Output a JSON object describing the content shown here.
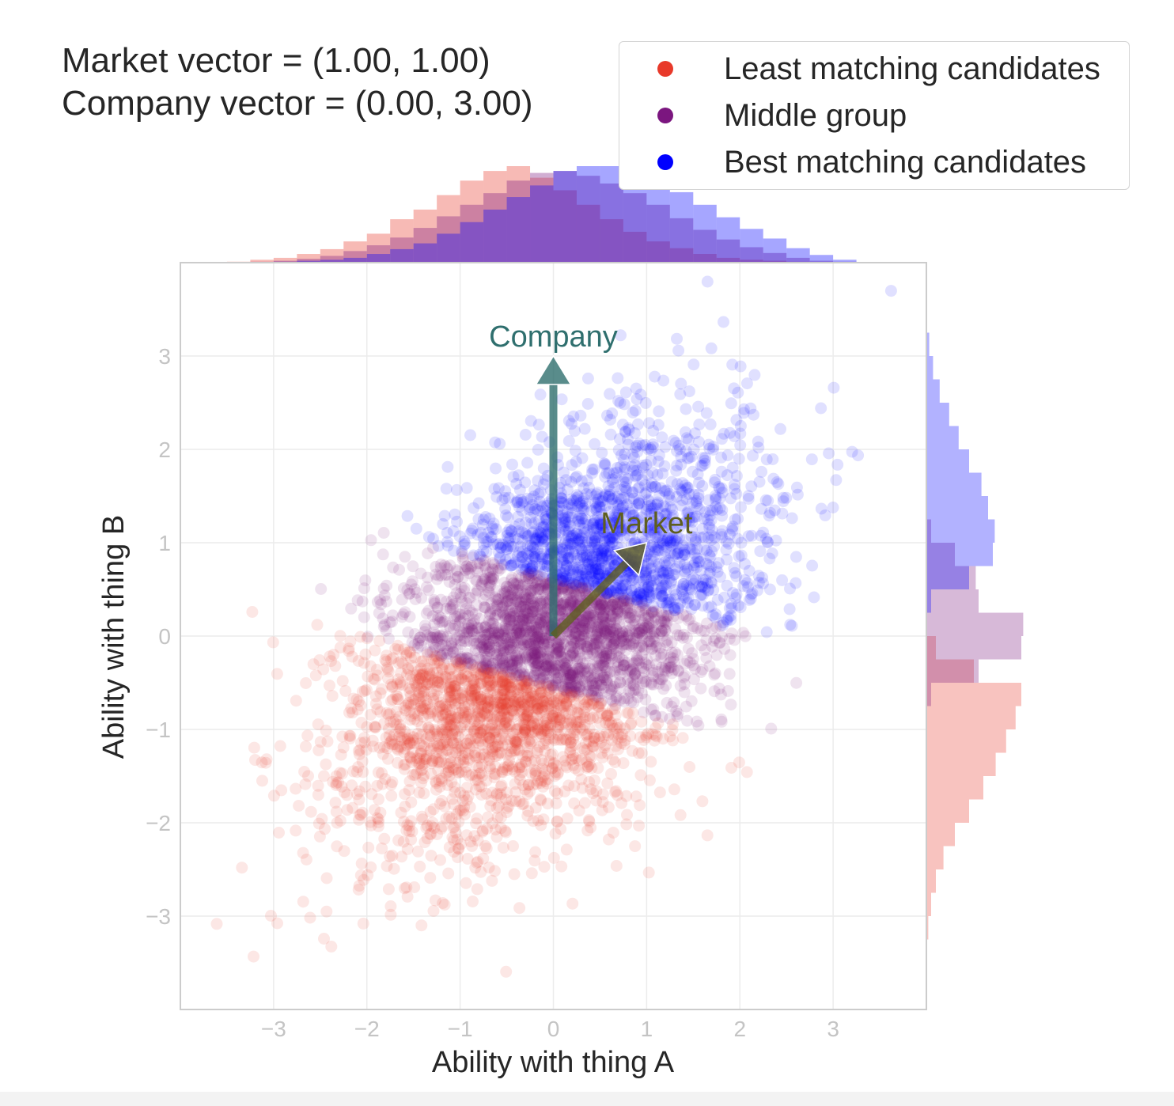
{
  "info": {
    "market_text": "Market vector = (1.00, 1.00)",
    "company_text": "Company vector = (0.00, 3.00)"
  },
  "legend": {
    "items": [
      {
        "label": "Least matching candidates",
        "color": "#e8392a"
      },
      {
        "label": "Middle group",
        "color": "#7b167f"
      },
      {
        "label": "Best matching candidates",
        "color": "#0000ff"
      }
    ]
  },
  "chart_data": {
    "type": "scatter",
    "title": "",
    "xlabel": "Ability with thing A",
    "ylabel": "Ability with thing B",
    "xlim": [
      -4,
      4
    ],
    "ylim": [
      -4,
      4
    ],
    "xticks": [
      -3,
      -2,
      -1,
      0,
      1,
      2,
      3
    ],
    "yticks": [
      -3,
      -2,
      -1,
      0,
      1,
      2,
      3
    ],
    "xtick_labels": [
      "−3",
      "−2",
      "−1",
      "0",
      "1",
      "2",
      "3"
    ],
    "ytick_labels": [
      "−3",
      "−2",
      "−1",
      "0",
      "1",
      "2",
      "3"
    ],
    "grid": true,
    "point_alpha": 0.12,
    "distribution": {
      "approx_n_points": 5000,
      "mean": [
        0,
        0
      ],
      "sd": [
        1,
        1
      ],
      "correlation": 0.5
    },
    "groups": [
      {
        "name": "Least matching candidates",
        "color": "#e8392a",
        "rule": "projection on market vector below lower threshold"
      },
      {
        "name": "Middle group",
        "color": "#7b167f",
        "rule": "projection between thresholds"
      },
      {
        "name": "Best matching candidates",
        "color": "#0000ff",
        "rule": "projection above upper threshold"
      }
    ],
    "vectors": [
      {
        "name": "Company",
        "from": [
          0,
          0
        ],
        "to": [
          0,
          3
        ],
        "color": "#2f6f6e"
      },
      {
        "name": "Market",
        "from": [
          0,
          0
        ],
        "to": [
          1,
          1
        ],
        "color": "#5e5e1e"
      }
    ],
    "marginal_x": {
      "bin_edges": [
        -3.5,
        -3.25,
        -3.0,
        -2.75,
        -2.5,
        -2.25,
        -2.0,
        -1.75,
        -1.5,
        -1.25,
        -1.0,
        -0.75,
        -0.5,
        -0.25,
        0.0,
        0.25,
        0.5,
        0.75,
        1.0,
        1.25,
        1.5,
        1.75,
        2.0,
        2.25,
        2.5,
        2.75,
        3.0,
        3.25
      ],
      "least": [
        0.01,
        0.03,
        0.05,
        0.09,
        0.14,
        0.22,
        0.3,
        0.45,
        0.55,
        0.7,
        0.85,
        0.95,
        1.0,
        0.88,
        0.75,
        0.6,
        0.45,
        0.32,
        0.22,
        0.15,
        0.09,
        0.05,
        0.03,
        0.02,
        0.01,
        0.0,
        0.0
      ],
      "middle": [
        0.0,
        0.01,
        0.02,
        0.04,
        0.07,
        0.12,
        0.18,
        0.26,
        0.36,
        0.48,
        0.6,
        0.72,
        0.85,
        0.93,
        0.95,
        0.9,
        0.82,
        0.72,
        0.6,
        0.46,
        0.34,
        0.24,
        0.16,
        0.1,
        0.05,
        0.02,
        0.01
      ],
      "best": [
        0.0,
        0.0,
        0.01,
        0.02,
        0.03,
        0.05,
        0.09,
        0.14,
        0.2,
        0.3,
        0.42,
        0.55,
        0.68,
        0.8,
        0.95,
        1.0,
        1.0,
        0.95,
        0.85,
        0.73,
        0.6,
        0.47,
        0.35,
        0.25,
        0.15,
        0.08,
        0.03
      ]
    },
    "marginal_y": {
      "bin_edges": [
        -3.25,
        -3.0,
        -2.75,
        -2.5,
        -2.25,
        -2.0,
        -1.75,
        -1.5,
        -1.25,
        -1.0,
        -0.75,
        -0.5,
        -0.25,
        0.0,
        0.25,
        0.5,
        0.75,
        1.0,
        1.25,
        1.5,
        1.75,
        2.0,
        2.25,
        2.5,
        2.75,
        3.0,
        3.25
      ],
      "least": [
        0.02,
        0.05,
        0.1,
        0.18,
        0.3,
        0.45,
        0.6,
        0.73,
        0.84,
        0.94,
        1.0,
        0.5,
        0.1,
        0.0,
        0.0,
        0.0,
        0.0,
        0.0,
        0.0,
        0.0,
        0.0,
        0.0,
        0.0,
        0.0,
        0.0,
        0.0
      ],
      "middle": [
        0.0,
        0.0,
        0.0,
        0.0,
        0.0,
        0.0,
        0.0,
        0.0,
        0.0,
        0.0,
        0.05,
        0.55,
        1.0,
        1.02,
        0.55,
        0.52,
        0.3,
        0.05,
        0.0,
        0.0,
        0.0,
        0.0,
        0.0,
        0.0,
        0.0,
        0.0
      ],
      "best": [
        0.0,
        0.0,
        0.0,
        0.0,
        0.0,
        0.0,
        0.0,
        0.0,
        0.0,
        0.0,
        0.0,
        0.0,
        0.0,
        0.0,
        0.05,
        0.45,
        0.7,
        0.72,
        0.65,
        0.58,
        0.45,
        0.34,
        0.24,
        0.14,
        0.07,
        0.03
      ]
    }
  }
}
